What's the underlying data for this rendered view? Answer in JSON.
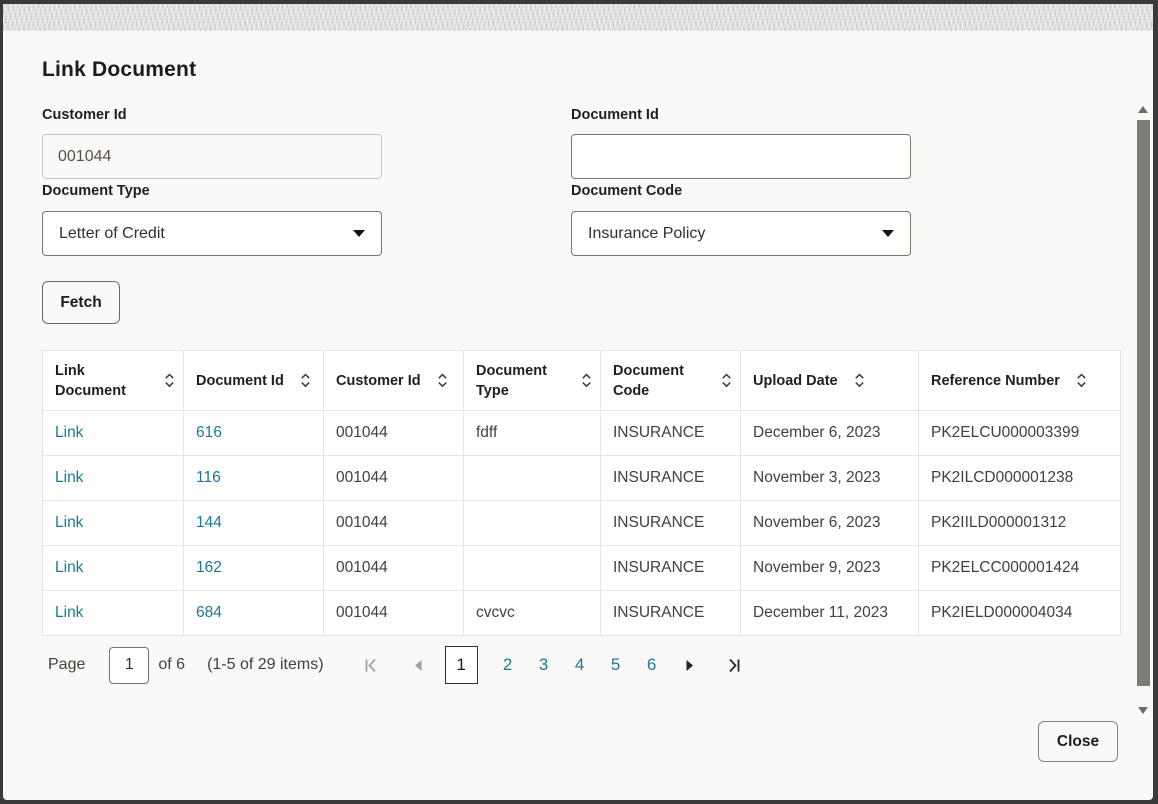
{
  "dialog": {
    "title": "Link Document",
    "fields": {
      "customer_id": {
        "label": "Customer Id",
        "value": "001044"
      },
      "document_id": {
        "label": "Document Id",
        "value": ""
      },
      "document_type": {
        "label": "Document Type",
        "value": "Letter of Credit"
      },
      "document_code": {
        "label": "Document Code",
        "value": "Insurance Policy"
      }
    },
    "fetch_button": "Fetch",
    "close_button": "Close"
  },
  "table": {
    "columns": [
      "Link Document",
      "Document Id",
      "Customer Id",
      "Document Type",
      "Document Code",
      "Upload Date",
      "Reference Number"
    ],
    "rows": [
      {
        "link": "Link",
        "document_id": "616",
        "customer_id": "001044",
        "document_type": "fdff",
        "document_code": "INSURANCE",
        "upload_date": "December 6, 2023",
        "reference_number": "PK2ELCU000003399"
      },
      {
        "link": "Link",
        "document_id": "116",
        "customer_id": "001044",
        "document_type": "",
        "document_code": "INSURANCE",
        "upload_date": "November 3, 2023",
        "reference_number": "PK2ILCD000001238"
      },
      {
        "link": "Link",
        "document_id": "144",
        "customer_id": "001044",
        "document_type": "",
        "document_code": "INSURANCE",
        "upload_date": "November 6, 2023",
        "reference_number": "PK2IILD000001312"
      },
      {
        "link": "Link",
        "document_id": "162",
        "customer_id": "001044",
        "document_type": "",
        "document_code": "INSURANCE",
        "upload_date": "November 9, 2023",
        "reference_number": "PK2ELCC000001424"
      },
      {
        "link": "Link",
        "document_id": "684",
        "customer_id": "001044",
        "document_type": "cvcvc",
        "document_code": "INSURANCE",
        "upload_date": "December 11, 2023",
        "reference_number": "PK2IELD000004034"
      }
    ]
  },
  "pagination": {
    "page_label": "Page",
    "current_page": "1",
    "of_label": "of 6",
    "items_summary": "(1-5 of 29 items)",
    "pages": [
      "1",
      "2",
      "3",
      "4",
      "5",
      "6"
    ]
  },
  "icons": {
    "sort": "sort-chevrons",
    "dropdown": "chevron-down",
    "first_page": "bar-chevron-left",
    "prev_page": "triangle-left",
    "next_page": "triangle-right",
    "last_page": "bar-chevron-right",
    "scroll_up": "triangle-up",
    "scroll_down": "triangle-down"
  },
  "colors": {
    "link": "#1b7995",
    "text": "#44403a",
    "heading": "#1d1b18",
    "border_light": "#e8e5e1",
    "disabled_icon": "#a3a09b",
    "enabled_icon": "#262420"
  }
}
